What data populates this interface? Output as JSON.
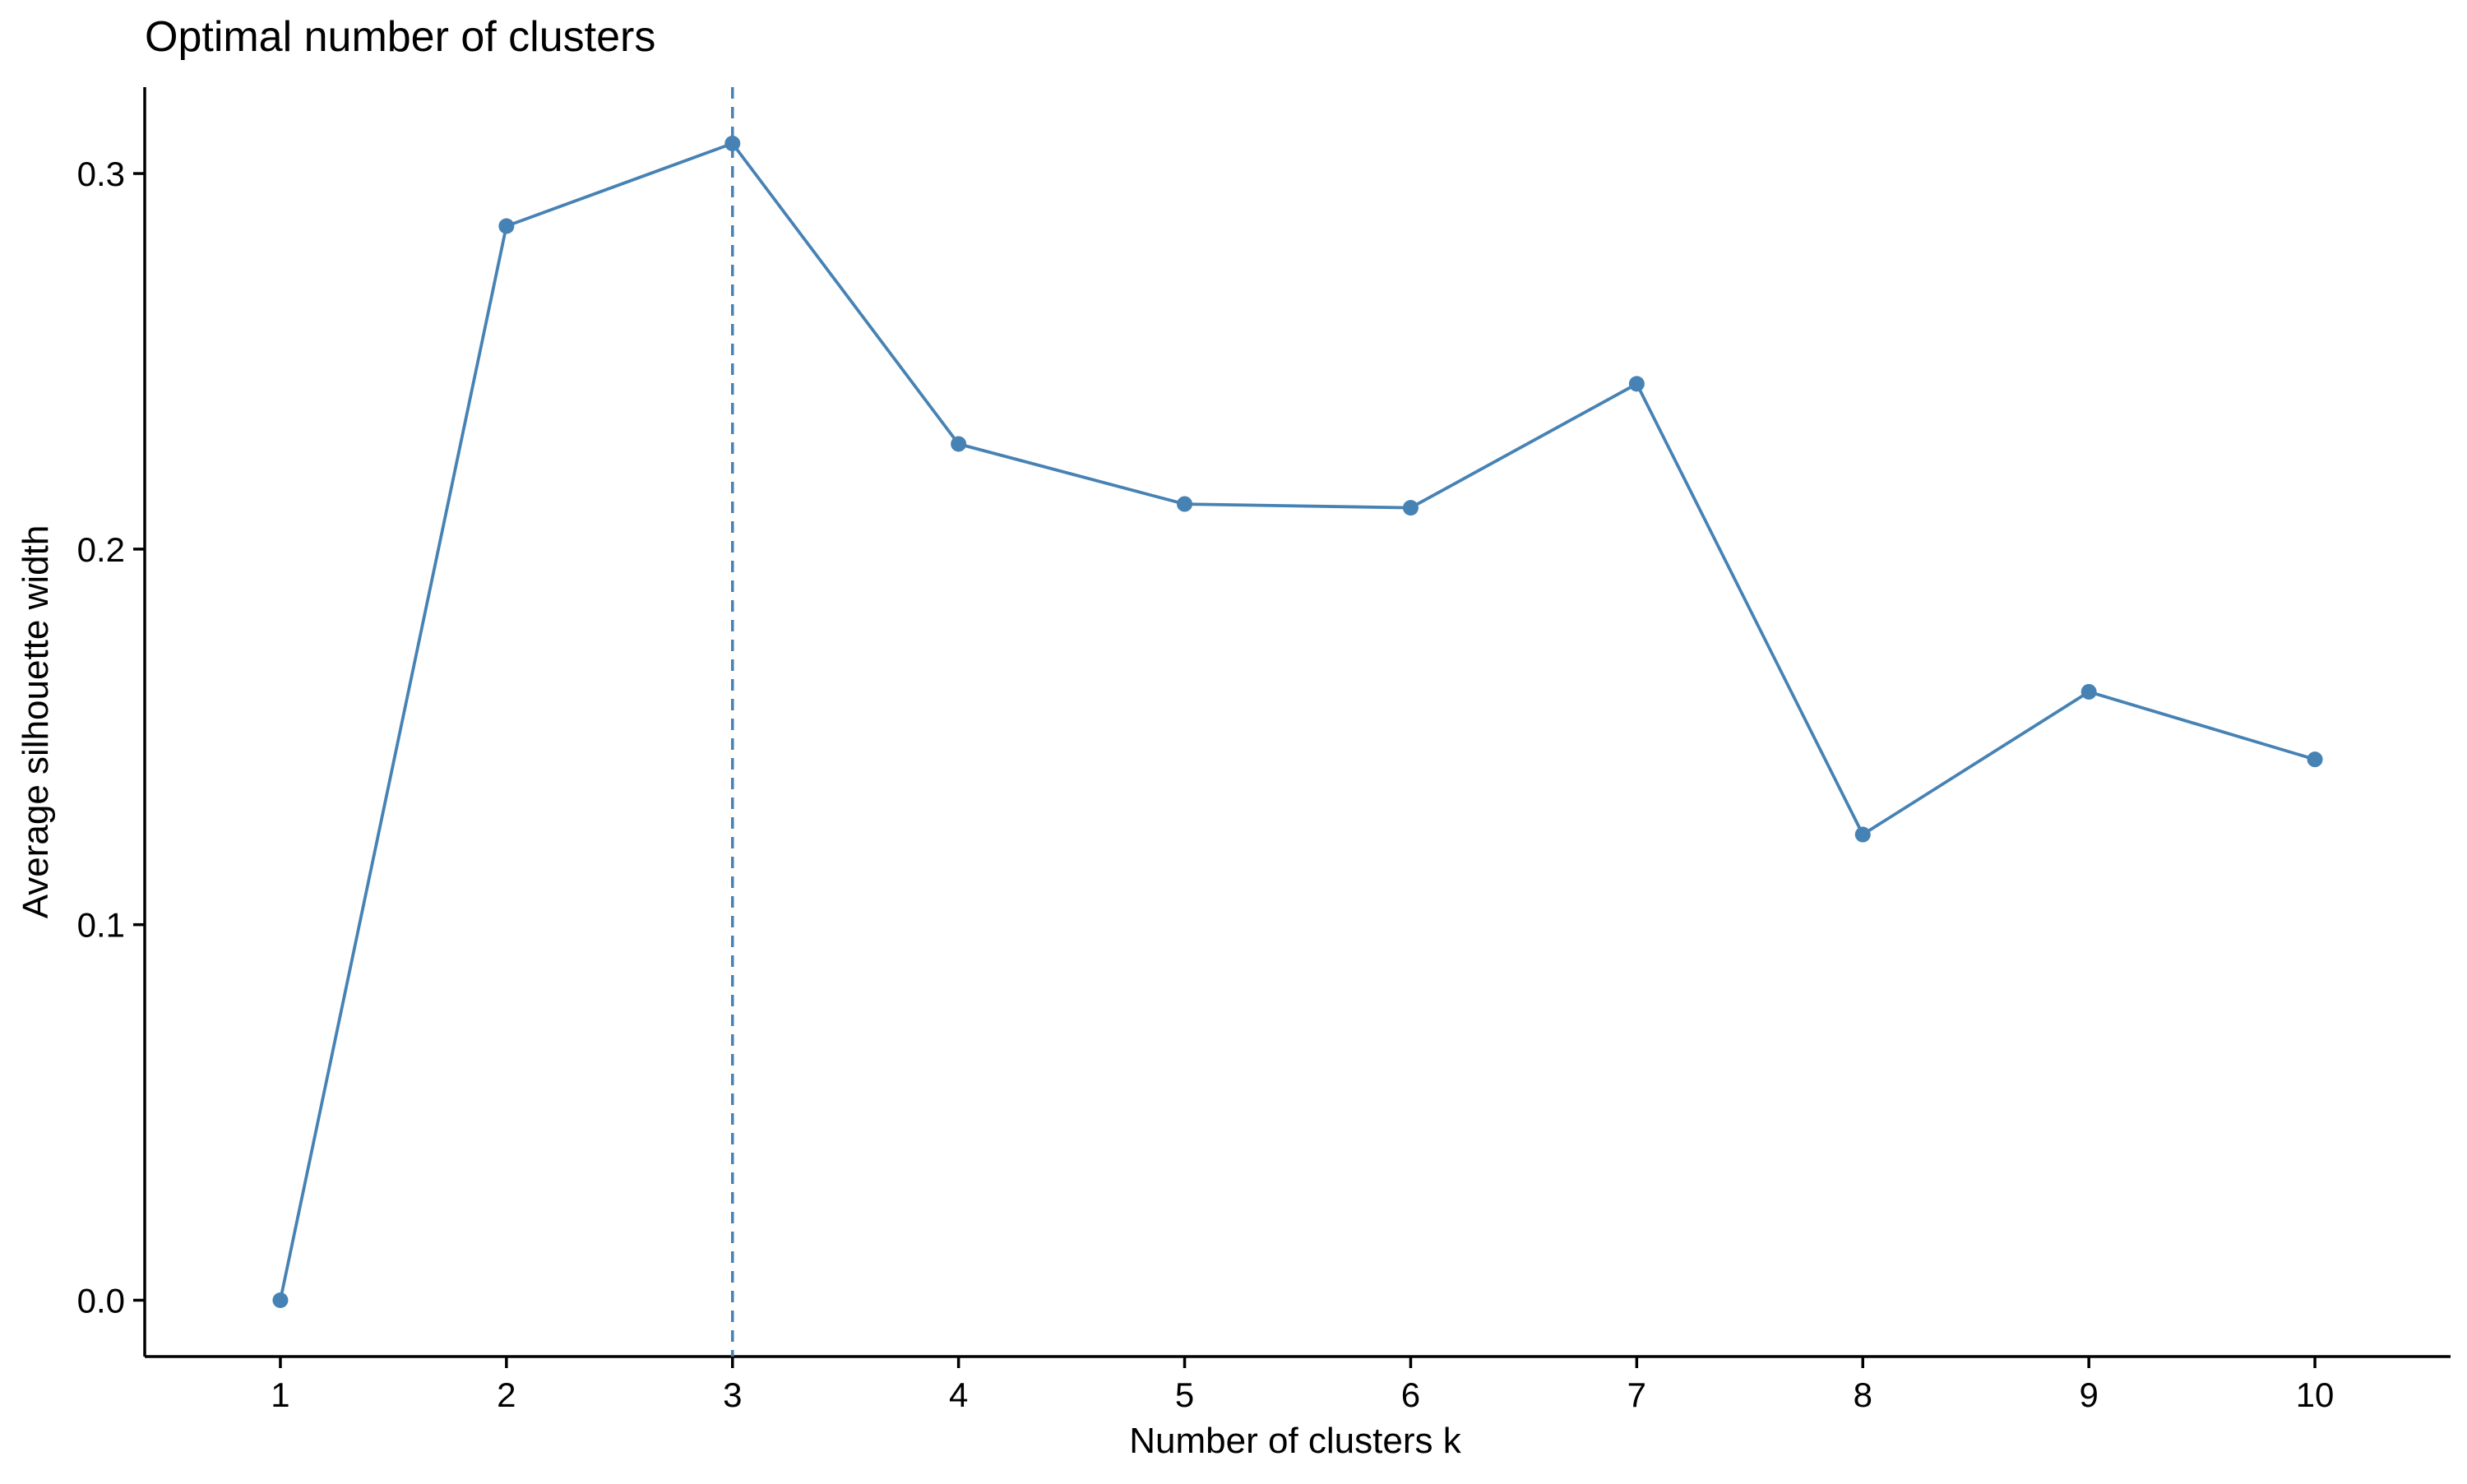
{
  "chart_data": {
    "type": "line",
    "title": "Optimal number of clusters",
    "xlabel": "Number of clusters k",
    "ylabel": "Average silhouette width",
    "categories": [
      "1",
      "2",
      "3",
      "4",
      "5",
      "6",
      "7",
      "8",
      "9",
      "10"
    ],
    "x": [
      1,
      2,
      3,
      4,
      5,
      6,
      7,
      8,
      9,
      10
    ],
    "series": [
      {
        "values": [
          0.0,
          0.286,
          0.308,
          0.228,
          0.212,
          0.211,
          0.244,
          0.124,
          0.162,
          0.144
        ],
        "color": "#4682B4"
      }
    ],
    "xlim": [
      0.4,
      10.6
    ],
    "ylim": [
      -0.015,
      0.323
    ],
    "yticks": [
      0.0,
      0.1,
      0.2,
      0.3
    ],
    "ytick_labels": [
      "0.0",
      "0.1",
      "0.2",
      "0.3"
    ],
    "reference_line": {
      "axis": "x",
      "value": 3,
      "style": "dashed",
      "color": "#4682B4"
    },
    "grid": false,
    "legend": "none"
  }
}
